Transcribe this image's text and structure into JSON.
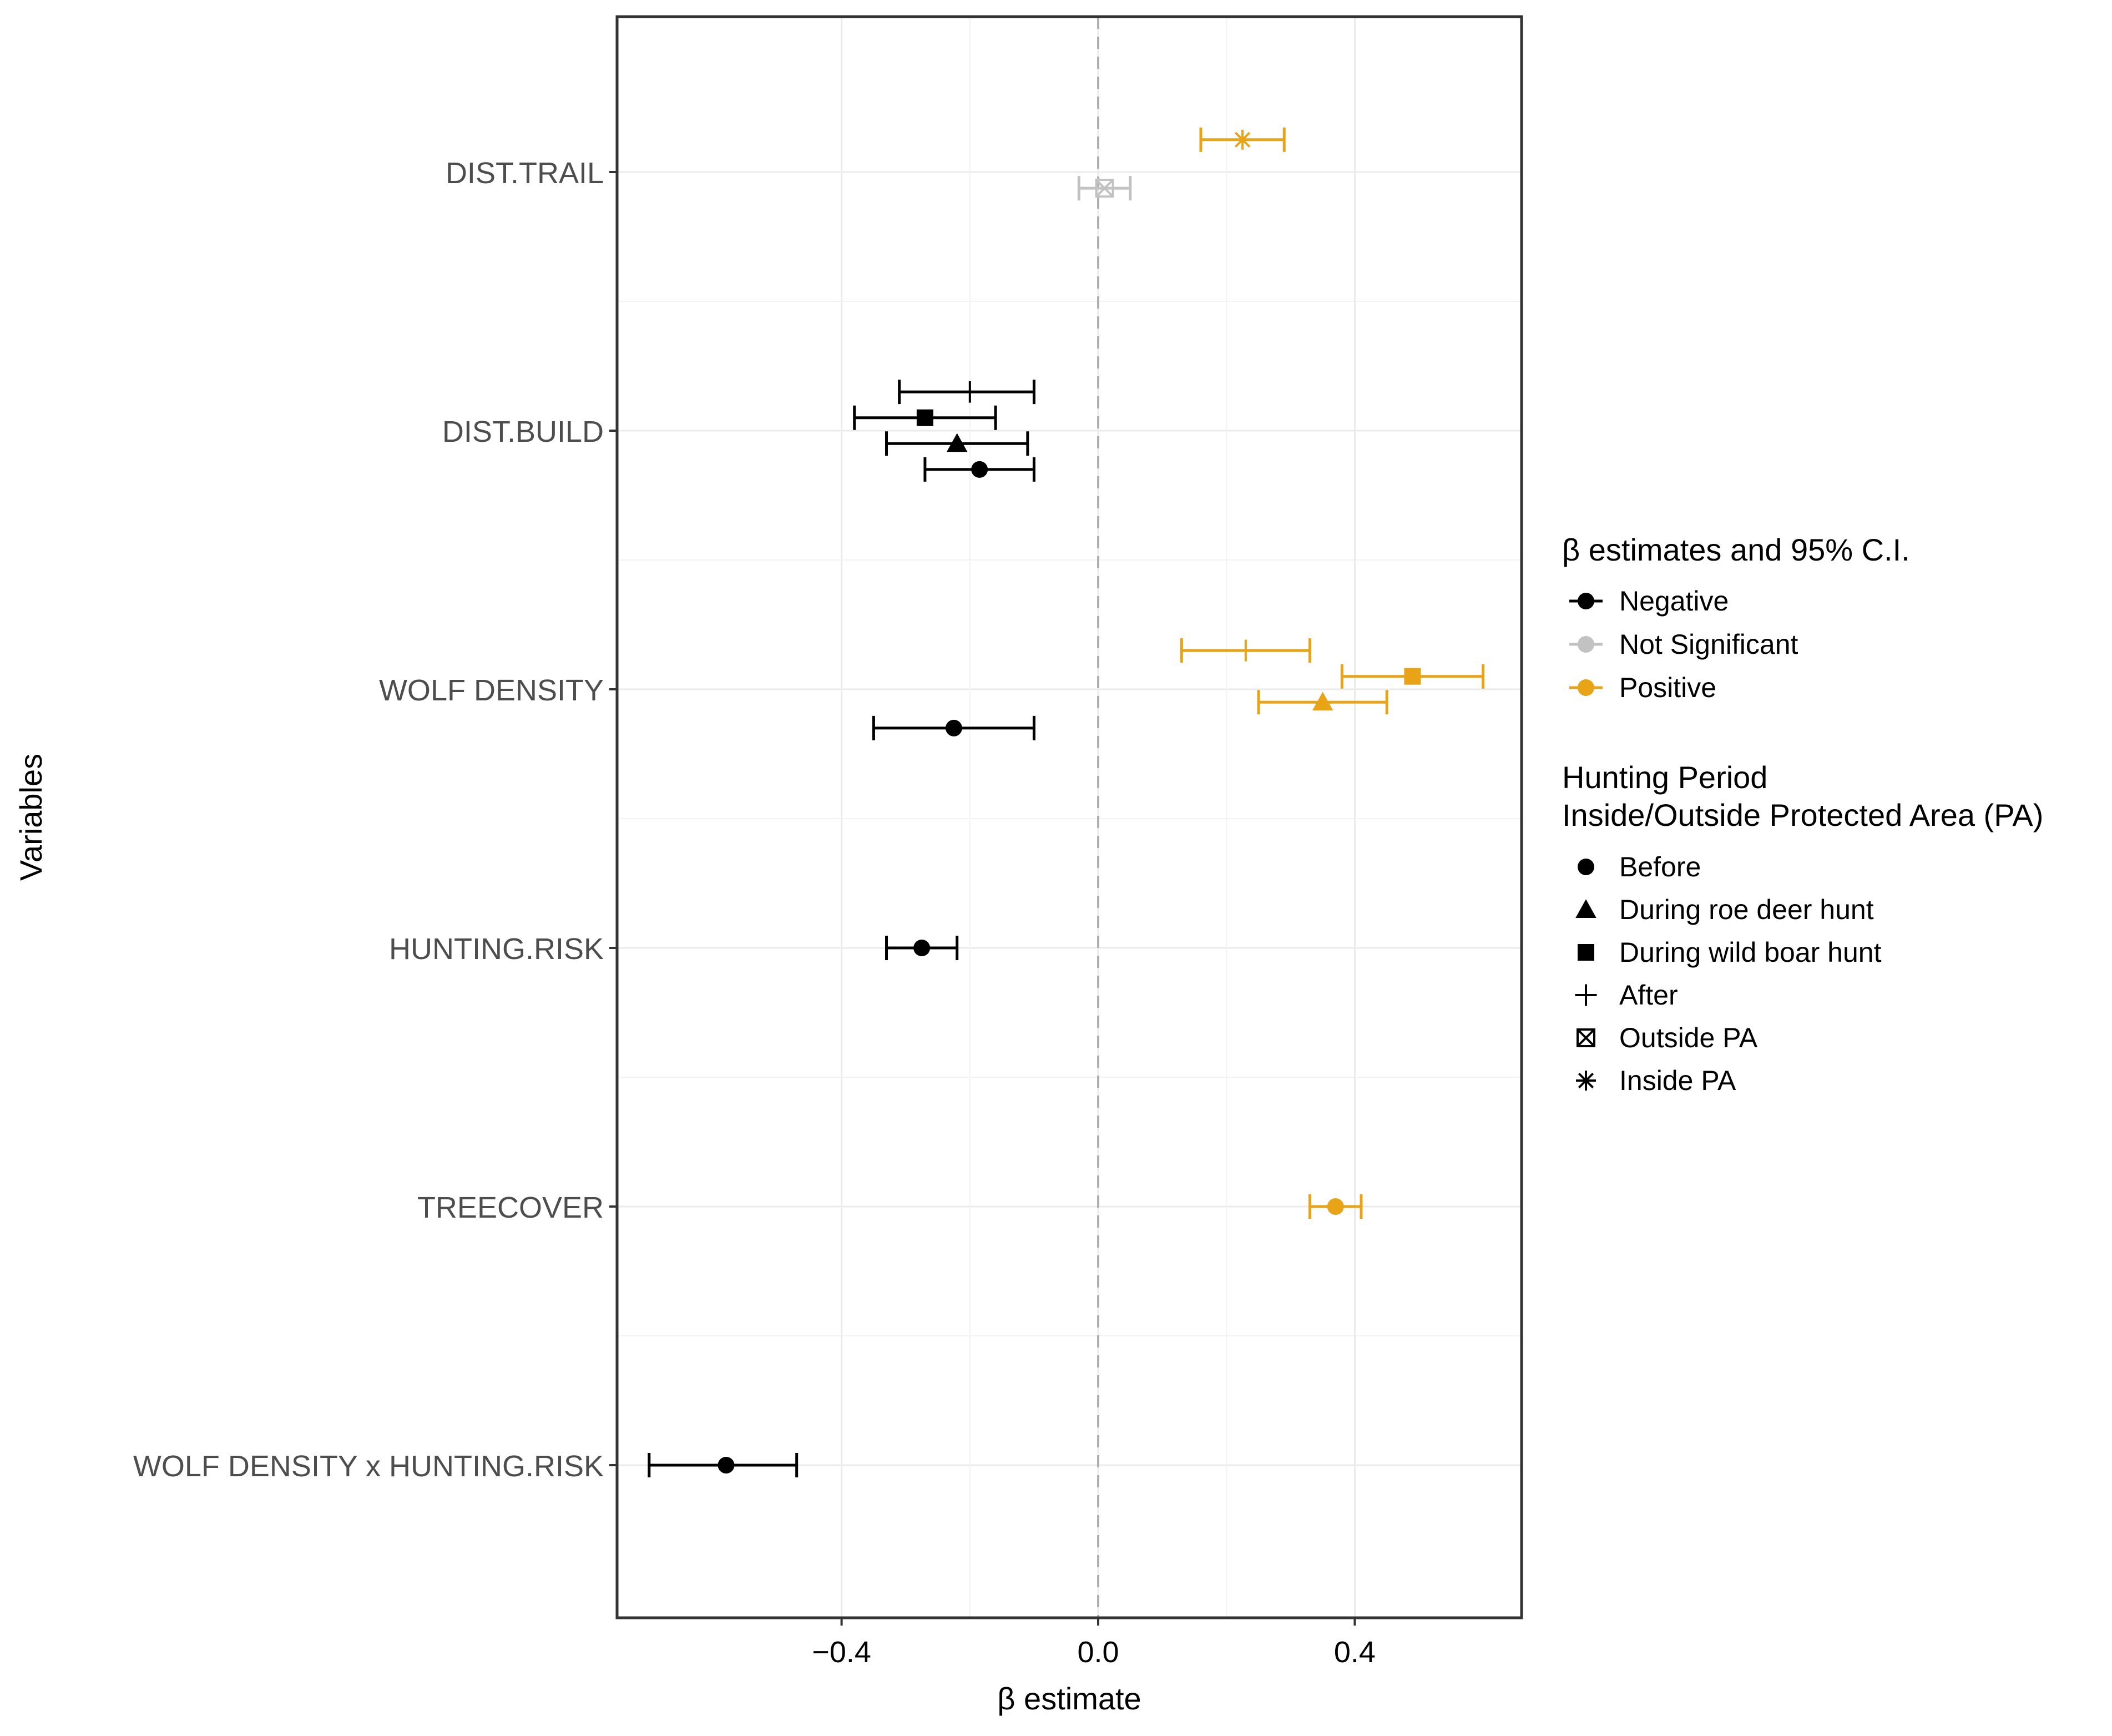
{
  "chart_data": {
    "type": "forest",
    "title": "",
    "xlabel": "β estimate",
    "ylabel": "Variables",
    "xlim": [
      -0.75,
      0.66
    ],
    "x_ticks": [
      -0.4,
      0.0,
      0.4
    ],
    "x_tick_labels": [
      "−0.4",
      "0.0",
      "0.4"
    ],
    "reference_line": 0.0,
    "grid": true,
    "categories": [
      "DIST.TRAIL",
      "DIST.BUILD",
      "WOLF DENSITY",
      "HUNTING.RISK",
      "TREECOVER",
      "WOLF DENSITY x HUNTING.RISK"
    ],
    "points": [
      {
        "variable": "DIST.TRAIL",
        "period": "Inside PA",
        "significance": "Positive",
        "estimate": 0.225,
        "lower": 0.16,
        "upper": 0.29,
        "offset": -0.25
      },
      {
        "variable": "DIST.TRAIL",
        "period": "Outside PA",
        "significance": "Not Significant",
        "estimate": 0.01,
        "lower": -0.03,
        "upper": 0.05,
        "offset": 0.125
      },
      {
        "variable": "DIST.BUILD",
        "period": "After",
        "significance": "Negative",
        "estimate": -0.2,
        "lower": -0.31,
        "upper": -0.1,
        "offset": -0.3
      },
      {
        "variable": "DIST.BUILD",
        "period": "During wild boar hunt",
        "significance": "Negative",
        "estimate": -0.27,
        "lower": -0.38,
        "upper": -0.16,
        "offset": -0.1
      },
      {
        "variable": "DIST.BUILD",
        "period": "During roe deer hunt",
        "significance": "Negative",
        "estimate": -0.22,
        "lower": -0.33,
        "upper": -0.11,
        "offset": 0.1
      },
      {
        "variable": "DIST.BUILD",
        "period": "Before",
        "significance": "Negative",
        "estimate": -0.185,
        "lower": -0.27,
        "upper": -0.1,
        "offset": 0.3
      },
      {
        "variable": "WOLF DENSITY",
        "period": "After",
        "significance": "Positive",
        "estimate": 0.23,
        "lower": 0.13,
        "upper": 0.33,
        "offset": -0.3
      },
      {
        "variable": "WOLF DENSITY",
        "period": "During wild boar hunt",
        "significance": "Positive",
        "estimate": 0.49,
        "lower": 0.38,
        "upper": 0.6,
        "offset": -0.1
      },
      {
        "variable": "WOLF DENSITY",
        "period": "During roe deer hunt",
        "significance": "Positive",
        "estimate": 0.35,
        "lower": 0.25,
        "upper": 0.45,
        "offset": 0.1
      },
      {
        "variable": "WOLF DENSITY",
        "period": "Before",
        "significance": "Negative",
        "estimate": -0.225,
        "lower": -0.35,
        "upper": -0.1,
        "offset": 0.3
      },
      {
        "variable": "HUNTING.RISK",
        "period": "Before",
        "significance": "Negative",
        "estimate": -0.275,
        "lower": -0.33,
        "upper": -0.22,
        "offset": 0.0
      },
      {
        "variable": "TREECOVER",
        "period": "Before",
        "significance": "Positive",
        "estimate": 0.37,
        "lower": 0.33,
        "upper": 0.41,
        "offset": 0.0
      },
      {
        "variable": "WOLF DENSITY x HUNTING.RISK",
        "period": "Before",
        "significance": "Negative",
        "estimate": -0.58,
        "lower": -0.7,
        "upper": -0.47,
        "offset": 0.0
      }
    ],
    "legend_placement": "right",
    "legend_significance": {
      "title": "β estimates and 95% C.I.",
      "items": [
        {
          "label": "Negative",
          "color": "#000000"
        },
        {
          "label": "Not Significant",
          "color": "#c2c2c2"
        },
        {
          "label": "Positive",
          "color": "#e8a317"
        }
      ]
    },
    "legend_shape": {
      "title_lines": [
        "Hunting Period",
        "Inside/Outside Protected Area (PA)"
      ],
      "items": [
        {
          "label": "Before",
          "shape": "circle"
        },
        {
          "label": "During roe deer hunt",
          "shape": "triangle"
        },
        {
          "label": "During wild boar hunt",
          "shape": "square"
        },
        {
          "label": "After",
          "shape": "plus"
        },
        {
          "label": "Outside PA",
          "shape": "boxed-x"
        },
        {
          "label": "Inside PA",
          "shape": "asterisk"
        }
      ]
    }
  }
}
